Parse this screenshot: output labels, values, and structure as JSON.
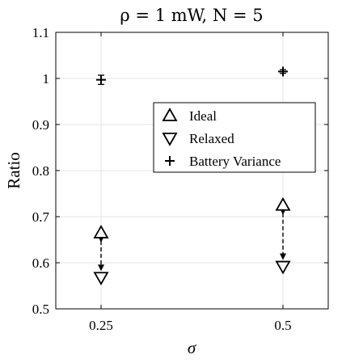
{
  "chart_data": {
    "type": "scatter",
    "title": "ρ = 1 mW, N = 5",
    "xlabel": "σ",
    "ylabel": "Ratio",
    "categories": [
      "0.25",
      "0.5"
    ],
    "ylim": [
      0.5,
      1.1
    ],
    "yticks": [
      "0.5",
      "0.6",
      "0.7",
      "0.8",
      "0.9",
      "1",
      "1.1"
    ],
    "grid": true,
    "legend_position": "center-right",
    "series": [
      {
        "name": "Ideal",
        "marker": "triangle-up",
        "values": [
          0.665,
          0.725
        ]
      },
      {
        "name": "Relaxed",
        "marker": "triangle-down",
        "values": [
          0.568,
          0.592
        ]
      },
      {
        "name": "Battery Variance",
        "marker": "plus",
        "values": [
          0.997,
          1.015
        ],
        "error": [
          0.01,
          0.004
        ]
      }
    ],
    "annotations": [
      {
        "type": "dashed-double-arrow",
        "category": "0.25",
        "from": 0.665,
        "to": 0.568
      },
      {
        "type": "dashed-double-arrow",
        "category": "0.5",
        "from": 0.725,
        "to": 0.592
      }
    ]
  }
}
